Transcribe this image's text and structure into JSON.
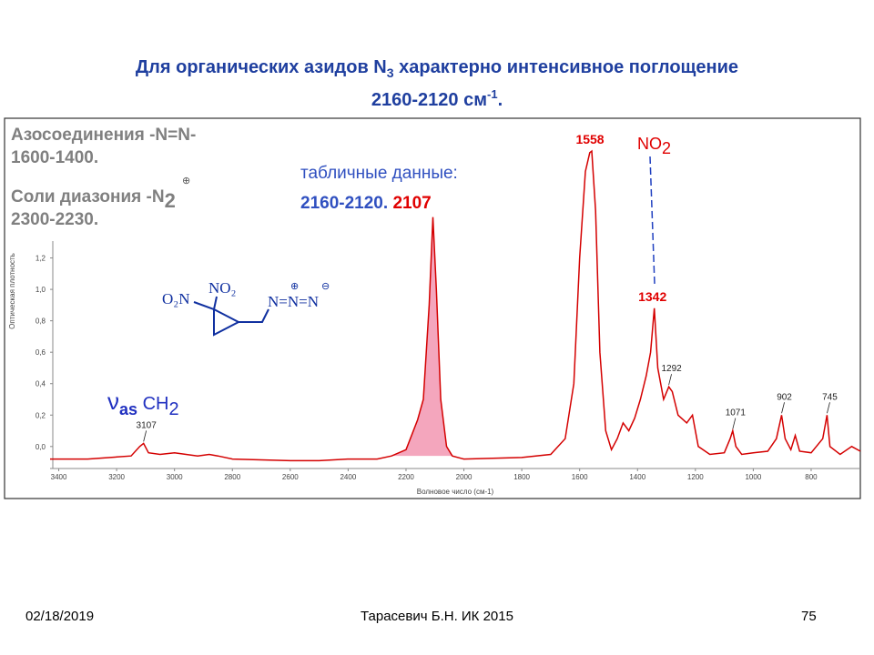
{
  "title": {
    "line1": [
      "Для органических азидов N",
      "3",
      " характерно интенсивное поглощение"
    ],
    "line2": [
      "2160-2120 см",
      "-1",
      "."
    ]
  },
  "notes": {
    "azo": "Азосоединения -N=N-",
    "azo_range": "1600-1400.",
    "diazo": "Соли диазония -N",
    "diazo_sub": "2",
    "diazo_charge": "⊕",
    "diazo_range": "2300-2230.",
    "table_label": "табличные данные:",
    "table_range": "2160-2120.",
    "table_peak": "2107",
    "no2": "NO",
    "no2_sub": "2",
    "nu": "ν",
    "nu_sub": "as",
    "ch": " CH",
    "ch_sub": "2"
  },
  "molecule": {
    "o2n": "O₂N",
    "no2": "NO₂",
    "azide": "N=N=N",
    "plus": "⊕",
    "minus": "⊖"
  },
  "footer": {
    "date": "02/18/2019",
    "author": "Тарасевич Б.Н.  ИК 2015",
    "page": "75"
  },
  "chart_data": {
    "type": "line",
    "xlabel": "Волновое число (см-1)",
    "ylabel": "Оптическая плотность",
    "xlim": [
      3430,
      630
    ],
    "ylim": [
      -0.14,
      2.06
    ],
    "xticks": [
      3400,
      3200,
      3000,
      2800,
      2600,
      2400,
      2200,
      2000,
      1800,
      1600,
      1400,
      1200,
      1000,
      800
    ],
    "yticks": [
      {
        "value": 0,
        "label": "0,0"
      },
      {
        "value": 0.2,
        "label": "0,2"
      },
      {
        "value": 0.4,
        "label": "0,4"
      },
      {
        "value": 0.6,
        "label": "0,6"
      },
      {
        "value": 0.8,
        "label": "0,8"
      },
      {
        "value": 1.0,
        "label": "1,0"
      },
      {
        "value": 1.2,
        "label": "1,2"
      }
    ],
    "fill_x": [
      2250,
      2040
    ],
    "fill_color": "#f4a6bd",
    "x": [
      3430,
      3300,
      3150,
      3120,
      3107,
      3090,
      3050,
      3000,
      2960,
      2920,
      2880,
      2850,
      2800,
      2600,
      2500,
      2400,
      2300,
      2250,
      2200,
      2160,
      2140,
      2120,
      2107,
      2095,
      2080,
      2060,
      2040,
      2000,
      1800,
      1700,
      1650,
      1620,
      1600,
      1580,
      1565,
      1558,
      1545,
      1530,
      1510,
      1490,
      1470,
      1450,
      1430,
      1410,
      1390,
      1370,
      1355,
      1342,
      1330,
      1310,
      1292,
      1280,
      1260,
      1230,
      1210,
      1190,
      1150,
      1100,
      1080,
      1071,
      1060,
      1040,
      1000,
      950,
      920,
      902,
      890,
      870,
      855,
      840,
      800,
      760,
      745,
      735,
      700,
      660,
      630
    ],
    "series": [
      {
        "color": "#d40000",
        "values": [
          -0.08,
          -0.08,
          -0.06,
          0.0,
          0.02,
          -0.04,
          -0.05,
          -0.04,
          -0.05,
          -0.06,
          -0.05,
          -0.06,
          -0.08,
          -0.09,
          -0.09,
          -0.08,
          -0.08,
          -0.06,
          -0.02,
          0.17,
          0.3,
          0.9,
          1.46,
          1.0,
          0.3,
          0.0,
          -0.06,
          -0.08,
          -0.07,
          -0.05,
          0.05,
          0.4,
          1.2,
          1.75,
          1.87,
          1.88,
          1.5,
          0.6,
          0.1,
          -0.02,
          0.05,
          0.15,
          0.1,
          0.18,
          0.3,
          0.45,
          0.6,
          0.88,
          0.5,
          0.3,
          0.38,
          0.35,
          0.2,
          0.15,
          0.2,
          0.0,
          -0.05,
          -0.04,
          0.05,
          0.1,
          0.0,
          -0.05,
          -0.04,
          -0.03,
          0.05,
          0.2,
          0.05,
          -0.02,
          0.07,
          -0.03,
          -0.04,
          0.05,
          0.2,
          0.0,
          -0.05,
          0.0,
          -0.03
        ]
      }
    ],
    "peaks": [
      3107,
      1292,
      1071,
      902,
      745
    ],
    "red_peaks": [
      1558,
      1342
    ]
  }
}
